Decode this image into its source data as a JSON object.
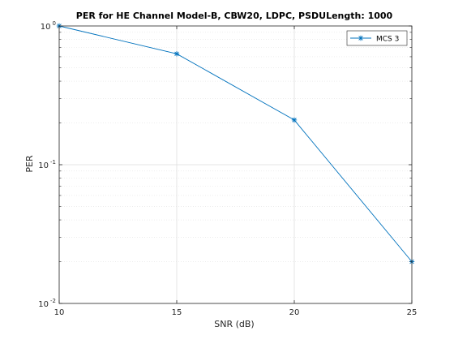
{
  "chart_data": {
    "type": "line",
    "title": "PER for HE Channel Model-B, CBW20, LDPC, PSDULength: 1000",
    "xlabel": "SNR (dB)",
    "ylabel": "PER",
    "x": [
      10,
      15,
      20,
      25
    ],
    "xlim": [
      10,
      25
    ],
    "ylim": [
      0.01,
      1
    ],
    "yscale": "log",
    "xticks": [
      "10",
      "15",
      "20",
      "25"
    ],
    "yticks": [
      {
        "base": "10",
        "exp": "0"
      },
      {
        "base": "10",
        "exp": "-1"
      },
      {
        "base": "10",
        "exp": "-2"
      }
    ],
    "grid": true,
    "legend_location": "top-right",
    "series": [
      {
        "name": "MCS 3",
        "color": "#0072BD",
        "marker": "asterisk",
        "values": [
          1.0,
          0.63,
          0.21,
          0.02
        ]
      }
    ]
  }
}
